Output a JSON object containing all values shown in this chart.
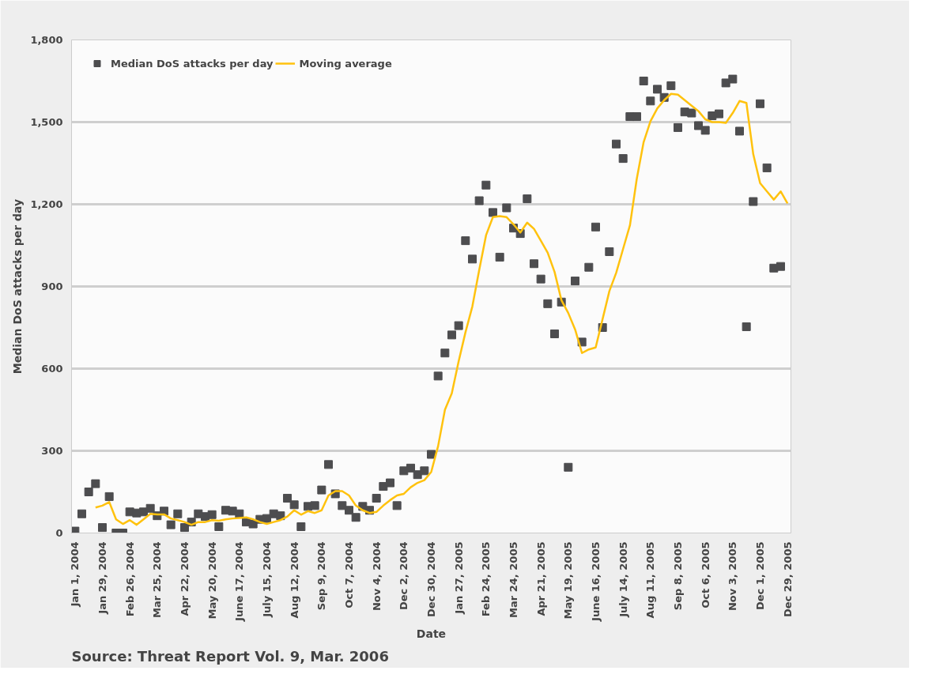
{
  "chart_data": {
    "type": "scatter",
    "xlabel": "Date",
    "ylabel": "Median DoS attacks per day",
    "categories": [
      "Jan 1, 2004",
      null,
      null,
      null,
      "Jan 29, 2004",
      null,
      null,
      null,
      "Feb 26, 2004",
      null,
      null,
      null,
      "Mar 25, 2004",
      null,
      null,
      null,
      "Apr 22, 2004",
      null,
      null,
      null,
      "May 20, 2004",
      null,
      null,
      null,
      "June 17, 2004",
      null,
      null,
      null,
      "July 15, 2004",
      null,
      null,
      null,
      "Aug 12, 2004",
      null,
      null,
      null,
      "Sep 9, 2004",
      null,
      null,
      null,
      "Oct 7, 2004",
      null,
      null,
      null,
      "Nov 4, 2004",
      null,
      null,
      null,
      "Dec 2, 2004",
      null,
      null,
      null,
      "Dec 30, 2004",
      null,
      null,
      null,
      "Jan 27, 2005",
      null,
      null,
      null,
      "Feb 24, 2005",
      null,
      null,
      null,
      "Mar 24, 2005",
      null,
      null,
      null,
      "Apr 21, 2005",
      null,
      null,
      null,
      "May 19, 2005",
      null,
      null,
      null,
      "June 16, 2005",
      null,
      null,
      null,
      "July 14, 2005",
      null,
      null,
      null,
      "Aug 11, 2005",
      null,
      null,
      null,
      "Sep 8, 2005",
      null,
      null,
      null,
      "Oct 6, 2005",
      null,
      null,
      null,
      "Nov 3, 2005",
      null,
      null,
      null,
      "Dec 1, 2005",
      null,
      null,
      null,
      "Dec 29, 2005"
    ],
    "series": [
      {
        "name": "Median DoS attacks per day",
        "marker": "square",
        "color": "#4d4d4f",
        "values": [
          7,
          70,
          150,
          180,
          20,
          133,
          0,
          0,
          77,
          73,
          77,
          90,
          63,
          80,
          30,
          70,
          20,
          40,
          70,
          60,
          67,
          23,
          83,
          80,
          70,
          40,
          33,
          50,
          53,
          70,
          63,
          127,
          103,
          23,
          97,
          100,
          157,
          250,
          143,
          100,
          83,
          57,
          97,
          83,
          127,
          170,
          183,
          100,
          227,
          237,
          213,
          227,
          287,
          573,
          657,
          723,
          757,
          1067,
          1000,
          1213,
          1270,
          1170,
          1007,
          1187,
          1113,
          1093,
          1220,
          983,
          927,
          837,
          727,
          843,
          240,
          920,
          697,
          970,
          1117,
          750,
          1027,
          1420,
          1367,
          1520,
          1520,
          1650,
          1577,
          1620,
          1590,
          1633,
          1480,
          1537,
          1533,
          1487,
          1470,
          1523,
          1530,
          1643,
          1657,
          1467,
          753,
          1210,
          1567,
          1333,
          967,
          973,
          null
        ]
      },
      {
        "name": "Moving average",
        "type": "line",
        "color": "#ffc20e",
        "values": [
          null,
          null,
          null,
          93,
          100,
          113,
          50,
          33,
          47,
          30,
          50,
          70,
          68,
          68,
          53,
          47,
          40,
          30,
          40,
          40,
          47,
          45,
          50,
          53,
          55,
          57,
          50,
          40,
          33,
          40,
          47,
          60,
          83,
          67,
          80,
          73,
          83,
          137,
          153,
          153,
          137,
          100,
          83,
          73,
          77,
          100,
          120,
          137,
          143,
          167,
          183,
          193,
          223,
          317,
          450,
          510,
          627,
          733,
          827,
          960,
          1087,
          1153,
          1157,
          1153,
          1127,
          1097,
          1133,
          1110,
          1067,
          1023,
          953,
          850,
          803,
          743,
          657,
          670,
          677,
          780,
          883,
          950,
          1037,
          1123,
          1293,
          1427,
          1503,
          1550,
          1580,
          1603,
          1600,
          1580,
          1560,
          1540,
          1510,
          1500,
          1500,
          1497,
          1533,
          1577,
          1570,
          1383,
          1277,
          1247,
          1217,
          1247,
          1203
        ]
      }
    ],
    "ylim": [
      0,
      1800
    ],
    "yticks": [
      0,
      300,
      600,
      900,
      {
        "value": 1200,
        "label": "1,200"
      },
      {
        "value": 1500,
        "label": "1,500"
      },
      {
        "value": 1800,
        "label": "1,800"
      }
    ],
    "grid": "y",
    "legend": "top left",
    "annotations": [
      "Source: Threat Report Vol. 9, Mar. 2006"
    ]
  }
}
